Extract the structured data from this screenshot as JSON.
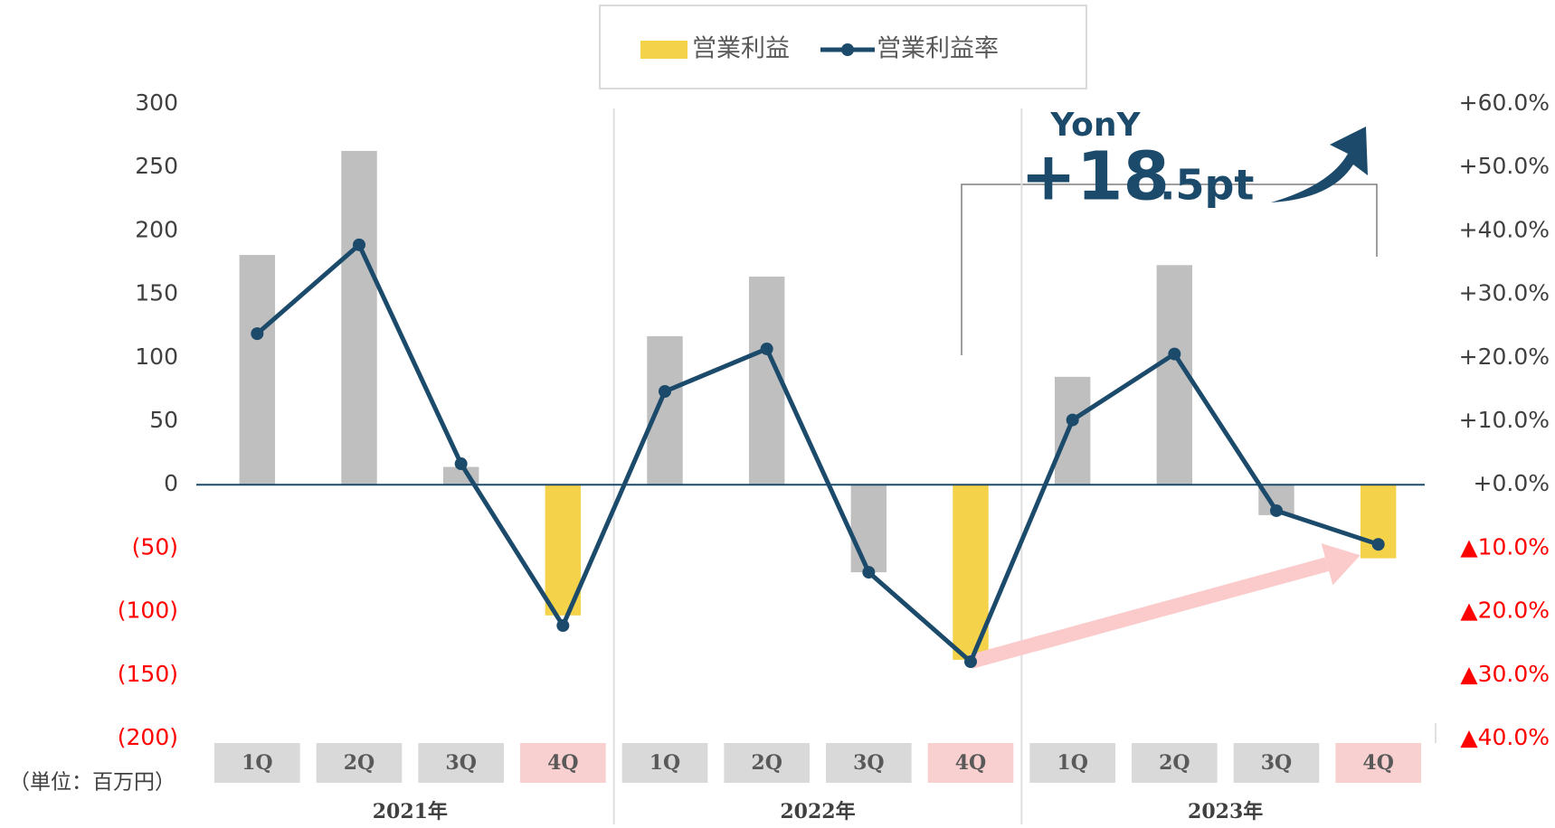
{
  "chart_data": {
    "type": "bar_line",
    "unit_note": "（単位：百万円）",
    "categories": [
      "1Q",
      "2Q",
      "3Q",
      "4Q",
      "1Q",
      "2Q",
      "3Q",
      "4Q",
      "1Q",
      "2Q",
      "3Q",
      "4Q"
    ],
    "category_box_colors": [
      "#d9d9d9",
      "#d9d9d9",
      "#d9d9d9",
      "#f9d0d0",
      "#d9d9d9",
      "#d9d9d9",
      "#d9d9d9",
      "#f9d0d0",
      "#d9d9d9",
      "#d9d9d9",
      "#d9d9d9",
      "#f9d0d0"
    ],
    "groups": [
      "2021年",
      "2022年",
      "2023年"
    ],
    "series": [
      {
        "name": "営業利益",
        "type": "bar",
        "color": "#f4d24a",
        "colors": [
          "#bfbfbf",
          "#bfbfbf",
          "#bfbfbf",
          "#f4d24a",
          "#bfbfbf",
          "#bfbfbf",
          "#bfbfbf",
          "#f4d24a",
          "#bfbfbf",
          "#bfbfbf",
          "#bfbfbf",
          "#f4d24a"
        ],
        "values": [
          181,
          263,
          14,
          -103,
          117,
          164,
          -69,
          -138,
          85,
          173,
          -24,
          -58
        ]
      },
      {
        "name": "営業利益率",
        "type": "line",
        "axis": "y2",
        "color": "#1b4a6b",
        "values": [
          23.8,
          37.8,
          3.3,
          -22.2,
          14.7,
          21.4,
          -13.8,
          -27.9,
          10.2,
          20.6,
          -4.1,
          -9.4
        ]
      }
    ],
    "ylim": [
      -200,
      300
    ],
    "yticks": [
      300,
      250,
      200,
      150,
      100,
      50,
      0,
      {
        "value": -50,
        "label": "(50)"
      },
      {
        "value": -100,
        "label": "(100)"
      },
      {
        "value": -150,
        "label": "(150)"
      },
      {
        "value": -200,
        "label": "(200)"
      }
    ],
    "y2lim": [
      -40,
      60
    ],
    "y2ticks": [
      {
        "value": 60,
        "label": "+60.0%"
      },
      {
        "value": 50,
        "label": "+50.0%"
      },
      {
        "value": 40,
        "label": "+40.0%"
      },
      {
        "value": 30,
        "label": "+30.0%"
      },
      {
        "value": 20,
        "label": "+20.0%"
      },
      {
        "value": 10,
        "label": "+10.0%"
      },
      {
        "value": 0,
        "label": "+0.0%"
      },
      {
        "value": -10,
        "label": "▲10.0%"
      },
      {
        "value": -20,
        "label": "▲20.0%"
      },
      {
        "value": -30,
        "label": "▲30.0%"
      },
      {
        "value": -40,
        "label": "▲40.0%"
      }
    ],
    "negative_label_color": "#ff0000",
    "annotation": {
      "title": "YonY",
      "main": "+18",
      "tail": ".5pt"
    }
  }
}
